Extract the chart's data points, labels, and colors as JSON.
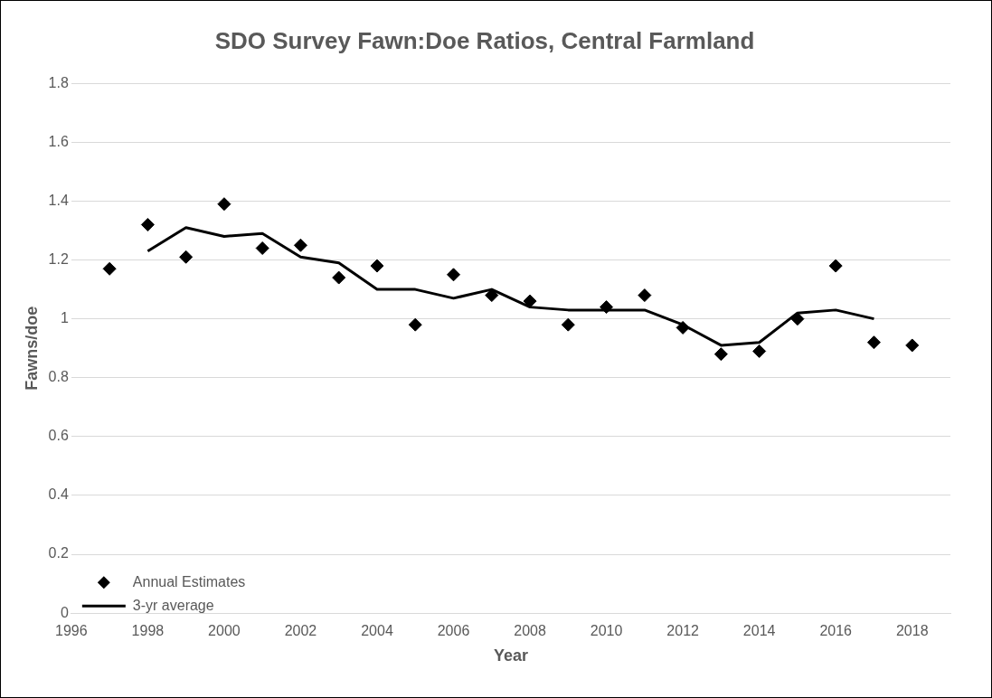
{
  "chart_data": {
    "type": "scatter",
    "title": "SDO Survey Fawn:Doe Ratios, Central Farmland",
    "xlabel": "Year",
    "ylabel": "Fawns/doe",
    "x": [
      1997,
      1998,
      1999,
      2000,
      2001,
      2002,
      2003,
      2004,
      2005,
      2006,
      2007,
      2008,
      2009,
      2010,
      2011,
      2012,
      2013,
      2014,
      2015,
      2016,
      2017,
      2018
    ],
    "series": [
      {
        "name": "Annual Estimates",
        "color": "#000000",
        "marker": "diamond",
        "values": [
          1.17,
          1.32,
          1.21,
          1.39,
          1.24,
          1.25,
          1.14,
          1.18,
          0.98,
          1.15,
          1.08,
          1.06,
          0.98,
          1.04,
          1.08,
          0.97,
          0.88,
          0.89,
          1.0,
          1.18,
          0.92,
          0.91
        ]
      },
      {
        "name": "3-yr average",
        "type": "line",
        "color": "#000000",
        "line_style": "solid",
        "x": [
          1998,
          1999,
          2000,
          2001,
          2002,
          2003,
          2004,
          2005,
          2006,
          2007,
          2008,
          2009,
          2010,
          2011,
          2012,
          2013,
          2014,
          2015,
          2016,
          2017
        ],
        "values": [
          1.23,
          1.31,
          1.28,
          1.29,
          1.21,
          1.19,
          1.1,
          1.1,
          1.07,
          1.1,
          1.04,
          1.03,
          1.03,
          1.03,
          0.98,
          0.91,
          0.92,
          1.02,
          1.03,
          1.0
        ]
      }
    ],
    "xlim": [
      1996,
      2019
    ],
    "xticks": [
      1996,
      1998,
      2000,
      2002,
      2004,
      2006,
      2008,
      2010,
      2012,
      2014,
      2016,
      2018
    ],
    "ylim": [
      0,
      1.8
    ],
    "yticks": [
      0,
      0.2,
      0.4,
      0.6,
      0.8,
      1,
      1.2,
      1.4,
      1.6,
      1.8
    ],
    "grid": "y",
    "legend": "bottom left"
  }
}
